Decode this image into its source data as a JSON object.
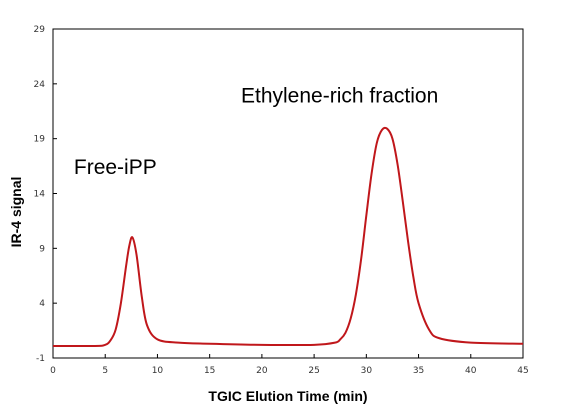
{
  "chart_data": {
    "type": "line",
    "xlabel": "TGIC Elution Time (min)",
    "ylabel": "IR-4 signal",
    "xlim": [
      0,
      45
    ],
    "ylim": [
      -1,
      29
    ],
    "x_ticks": [
      "0",
      "5",
      "10",
      "15",
      "20",
      "25",
      "30",
      "35",
      "40",
      "45"
    ],
    "y_ticks": [
      "-1",
      "4",
      "9",
      "14",
      "19",
      "24",
      "29"
    ],
    "grid": false,
    "legend": "none",
    "line_color": "#c0171b",
    "annotations": [
      {
        "text": "Free-iPP",
        "x": 2,
        "y": 15.8
      },
      {
        "text": "Ethylene-rich fraction",
        "x": 18,
        "y": 22.3
      }
    ],
    "series": [
      {
        "x": [
          0,
          4,
          5,
          5.5,
          6,
          6.5,
          7,
          7.3,
          7.6,
          8,
          8.5,
          9,
          10,
          12,
          15,
          20,
          25,
          27,
          27.5,
          28,
          28.5,
          29,
          29.5,
          30,
          30.5,
          31,
          31.5,
          32,
          32.5,
          33,
          33.5,
          34,
          34.5,
          35,
          36,
          37,
          40,
          45
        ],
        "y": [
          0.1,
          0.1,
          0.2,
          0.6,
          1.6,
          4.0,
          7.4,
          9.2,
          10.0,
          8.4,
          4.6,
          2.0,
          0.7,
          0.4,
          0.3,
          0.2,
          0.2,
          0.4,
          0.7,
          1.3,
          2.6,
          4.8,
          8.0,
          12.0,
          15.8,
          18.6,
          19.8,
          19.9,
          19.0,
          16.6,
          13.2,
          9.6,
          6.4,
          4.0,
          1.6,
          0.8,
          0.4,
          0.3
        ]
      }
    ]
  }
}
